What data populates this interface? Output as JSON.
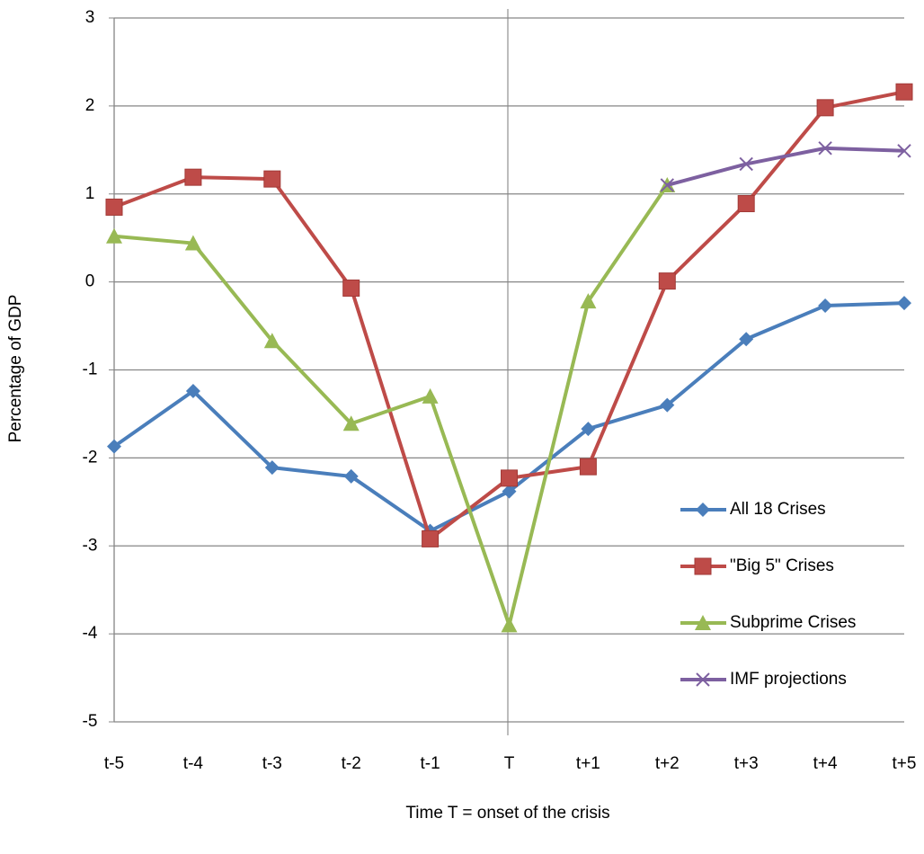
{
  "chart_data": {
    "type": "line",
    "y_label": "Percentage of GDP",
    "x_label": "Time T = onset of the crisis",
    "categories": [
      "t-5",
      "t-4",
      "t-3",
      "t-2",
      "t-1",
      "T",
      "t+1",
      "t+2",
      "t+3",
      "t+4",
      "t+5"
    ],
    "series": [
      {
        "name": "All 18 Crises",
        "color": "#4a7ebb",
        "marker": "diamond",
        "values": [
          -1.87,
          -1.24,
          -2.11,
          -2.21,
          -2.83,
          -2.38,
          -1.67,
          -1.4,
          -0.65,
          -0.27,
          -0.24
        ]
      },
      {
        "name": "\"Big 5\" Crises",
        "color": "#be4b48",
        "marker": "square",
        "values": [
          0.85,
          1.19,
          1.17,
          -0.07,
          -2.92,
          -2.23,
          -2.1,
          0.01,
          0.89,
          1.98,
          2.16
        ]
      },
      {
        "name": "Subprime Crises",
        "color": "#98b954",
        "marker": "triangle",
        "values": [
          0.52,
          0.44,
          -0.67,
          -1.61,
          -1.3,
          -3.9,
          -0.22,
          1.1,
          null,
          null,
          null
        ]
      },
      {
        "name": "IMF projections",
        "color": "#7d60a0",
        "marker": "x",
        "values": [
          null,
          null,
          null,
          null,
          null,
          null,
          null,
          1.1,
          1.34,
          1.52,
          1.49
        ]
      }
    ],
    "ylim": [
      -5,
      3
    ],
    "yticks": [
      -5,
      -4,
      -3,
      -2,
      -1,
      0,
      1,
      2,
      3
    ],
    "grid": true
  }
}
